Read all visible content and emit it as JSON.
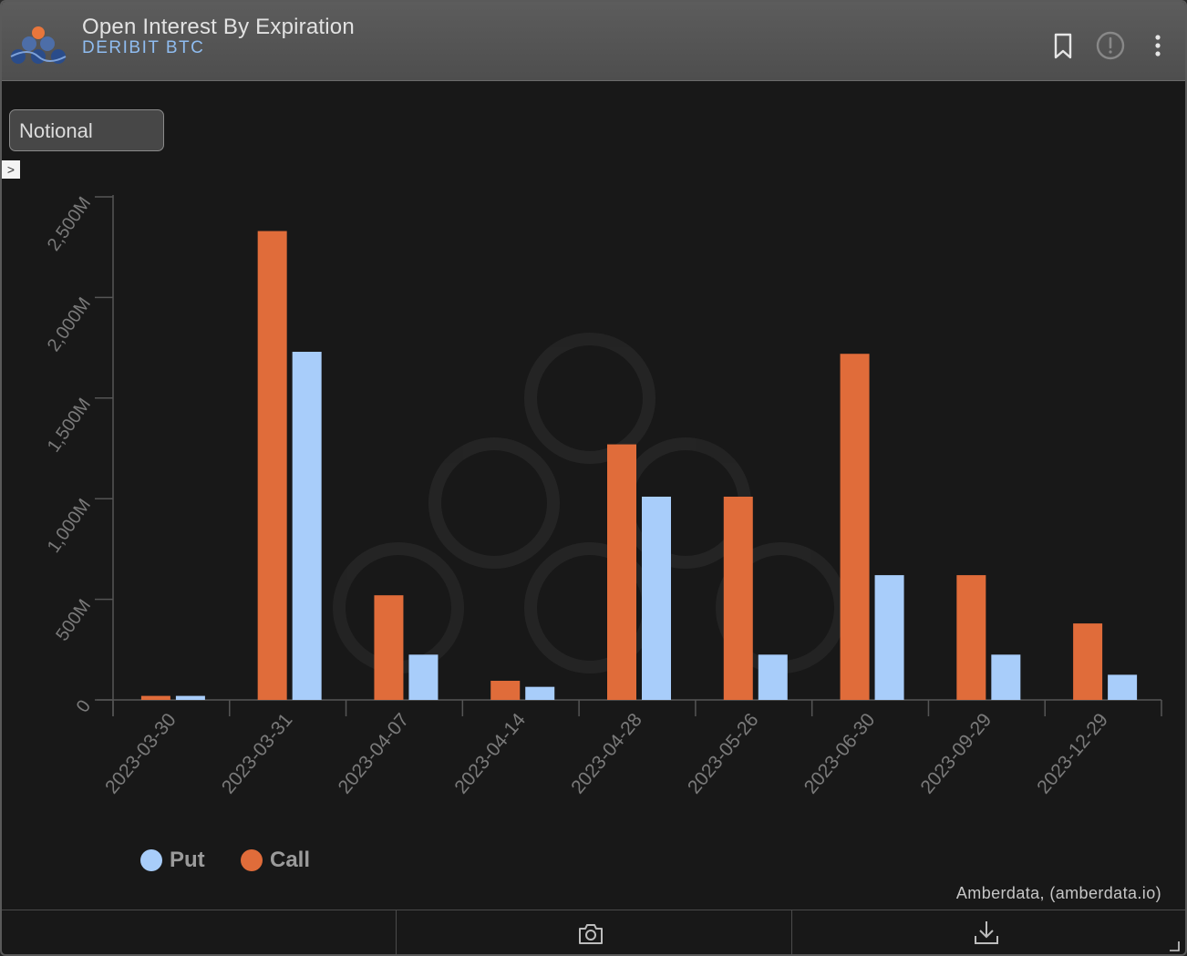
{
  "header": {
    "title": "Open Interest By Expiration",
    "subtitle": "DERIBIT BTC",
    "icons": [
      "bookmark-icon",
      "info-icon",
      "more-icon"
    ]
  },
  "controls": {
    "metric_select": "Notional",
    "toggle_glyph": ">"
  },
  "colors": {
    "put": "#a8cdfa",
    "call": "#e06c3a",
    "axis": "#555555",
    "tick_text": "#7a7a7a"
  },
  "chart_data": {
    "type": "bar",
    "categories": [
      "2023-03-30",
      "2023-03-31",
      "2023-04-07",
      "2023-04-14",
      "2023-04-28",
      "2023-05-26",
      "2023-06-30",
      "2023-09-29",
      "2023-12-29"
    ],
    "series": [
      {
        "name": "Call",
        "color": "#e06c3a",
        "values": [
          20,
          2330,
          520,
          95,
          1270,
          1010,
          1720,
          620,
          380
        ]
      },
      {
        "name": "Put",
        "color": "#a8cdfa",
        "values": [
          20,
          1730,
          225,
          65,
          1010,
          225,
          620,
          225,
          125
        ]
      }
    ],
    "ylim": [
      0,
      2500
    ],
    "yticks": [
      0,
      500,
      1000,
      1500,
      2000,
      2500
    ],
    "ytick_labels": [
      "0",
      "500M",
      "1,000M",
      "1,500M",
      "2,000M",
      "2,500M"
    ],
    "grid": false,
    "legend": {
      "position": "bottom-left",
      "items": [
        {
          "label": "Put",
          "color": "#a8cdfa"
        },
        {
          "label": "Call",
          "color": "#e06c3a"
        }
      ]
    }
  },
  "footer": {
    "credit": "Amberdata, (amberdata.io)",
    "icons": [
      "camera-icon",
      "download-icon"
    ]
  }
}
